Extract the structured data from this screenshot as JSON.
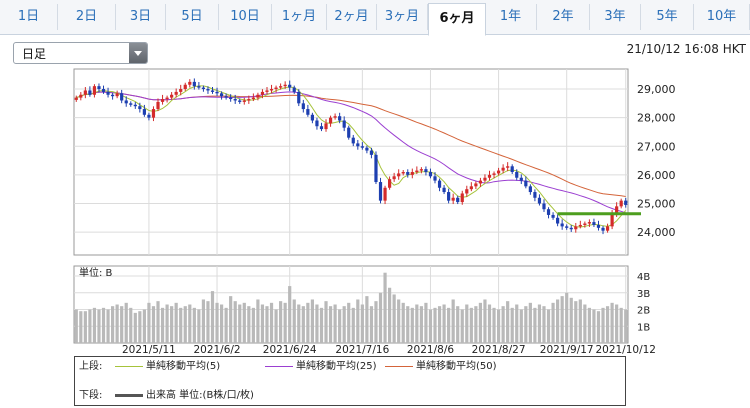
{
  "tabs": [
    {
      "label": "1日",
      "active": false
    },
    {
      "label": "2日",
      "active": false
    },
    {
      "label": "3日",
      "active": false
    },
    {
      "label": "5日",
      "active": false
    },
    {
      "label": "10日",
      "active": false
    },
    {
      "label": "1ヶ月",
      "active": false
    },
    {
      "label": "2ヶ月",
      "active": false
    },
    {
      "label": "3ヶ月",
      "active": false
    },
    {
      "label": "6ヶ月",
      "active": true
    },
    {
      "label": "1年",
      "active": false
    },
    {
      "label": "2年",
      "active": false
    },
    {
      "label": "3年",
      "active": false
    },
    {
      "label": "5年",
      "active": false
    },
    {
      "label": "10年",
      "active": false
    }
  ],
  "period_select": {
    "value": "日足"
  },
  "timestamp": "21/10/12 16:08 HKT",
  "volume_unit_label": "単位: B",
  "legend": {
    "upper_label": "上段:",
    "lower_label": "下段:",
    "ma5_label": "単純移動平均(5)",
    "ma25_label": "単純移動平均(25)",
    "ma50_label": "単純移動平均(50)",
    "volume_label": "出来高 単位:(B株/口/枚)"
  },
  "colors": {
    "up": "#d42b2b",
    "down": "#1d3fb0",
    "ma5": "#a6c33a",
    "ma25": "#9b3fd1",
    "ma50": "#d4643a",
    "volume": "#b9b9b9",
    "ref_line": "#4d9e1e"
  },
  "chart_data": {
    "type": "candlestick",
    "price_axis": {
      "ticks": [
        "29,000",
        "28,000",
        "27,000",
        "26,000",
        "25,000",
        "24,000"
      ],
      "values": [
        29000,
        28000,
        27000,
        26000,
        25000,
        24000
      ],
      "ylim": [
        23200,
        29700
      ]
    },
    "volume_axis": {
      "ticks": [
        "4B",
        "3B",
        "2B",
        "1B"
      ],
      "values": [
        4,
        3,
        2,
        1
      ],
      "ylim": [
        0,
        4.6
      ]
    },
    "x_tick_labels": [
      {
        "label": "2021/5/11",
        "index": 16
      },
      {
        "label": "2021/6/2",
        "index": 31
      },
      {
        "label": "2021/6/24",
        "index": 47
      },
      {
        "label": "2021/7/16",
        "index": 63
      },
      {
        "label": "2021/8/6",
        "index": 78
      },
      {
        "label": "2021/8/27",
        "index": 93
      },
      {
        "label": "2021/9/17",
        "index": 108
      },
      {
        "label": "2021/10/12",
        "index": 121
      }
    ],
    "reference_level": 24640,
    "close": [
      28700,
      28800,
      28950,
      28800,
      29100,
      29000,
      28900,
      28800,
      28750,
      28850,
      28600,
      28500,
      28450,
      28400,
      28300,
      28100,
      28000,
      28300,
      28550,
      28650,
      28700,
      28800,
      28900,
      29000,
      29150,
      29250,
      29100,
      29050,
      29000,
      28950,
      28900,
      28850,
      28750,
      28700,
      28650,
      28600,
      28550,
      28600,
      28650,
      28700,
      28800,
      28900,
      28950,
      29000,
      29050,
      29100,
      29150,
      29050,
      28900,
      28500,
      28300,
      28100,
      27900,
      27700,
      27600,
      27800,
      28000,
      28050,
      27900,
      27650,
      27300,
      27100,
      27000,
      26950,
      26850,
      26700,
      25750,
      25100,
      25550,
      25850,
      25950,
      26050,
      26100,
      26000,
      26100,
      26150,
      26200,
      26100,
      25950,
      25800,
      25550,
      25400,
      25100,
      25200,
      25050,
      25350,
      25500,
      25600,
      25700,
      25800,
      25900,
      26000,
      26050,
      26150,
      26250,
      26300,
      26100,
      25900,
      25800,
      25600,
      25400,
      25200,
      25000,
      24800,
      24600,
      24500,
      24300,
      24200,
      24150,
      24100,
      24200,
      24250,
      24300,
      24350,
      24250,
      24150,
      24050,
      24200,
      24650,
      24900,
      25100,
      24950
    ],
    "volume": [
      2.0,
      1.9,
      1.9,
      2.0,
      2.1,
      2.0,
      2.1,
      2.0,
      2.2,
      2.3,
      2.2,
      2.4,
      2.1,
      1.8,
      1.9,
      2.0,
      2.4,
      2.2,
      2.5,
      2.1,
      2.3,
      2.2,
      2.4,
      2.1,
      2.2,
      2.3,
      2.1,
      2.0,
      2.6,
      2.5,
      3.1,
      2.4,
      2.3,
      2.1,
      2.8,
      2.5,
      2.3,
      2.4,
      2.2,
      2.1,
      2.6,
      2.3,
      2.2,
      2.4,
      2.0,
      2.5,
      2.4,
      3.4,
      2.6,
      2.3,
      2.2,
      2.4,
      2.6,
      2.3,
      2.1,
      2.5,
      2.2,
      2.3,
      2.0,
      2.2,
      2.4,
      2.1,
      2.6,
      2.3,
      2.8,
      2.2,
      2.5,
      3.0,
      4.2,
      3.3,
      2.9,
      2.6,
      2.4,
      2.2,
      2.1,
      2.3,
      2.2,
      2.4,
      2.0,
      2.1,
      2.2,
      2.3,
      2.1,
      2.6,
      2.2,
      2.0,
      2.3,
      2.1,
      2.2,
      2.4,
      2.6,
      2.3,
      2.1,
      2.0,
      2.2,
      2.5,
      2.1,
      2.3,
      2.0,
      2.2,
      2.4,
      2.1,
      2.3,
      2.2,
      2.0,
      2.4,
      2.6,
      2.8,
      3.0,
      2.7,
      2.5,
      2.6,
      2.3,
      2.1,
      2.0,
      1.9,
      2.1,
      2.2,
      2.4,
      2.3,
      2.1,
      2.0
    ]
  }
}
